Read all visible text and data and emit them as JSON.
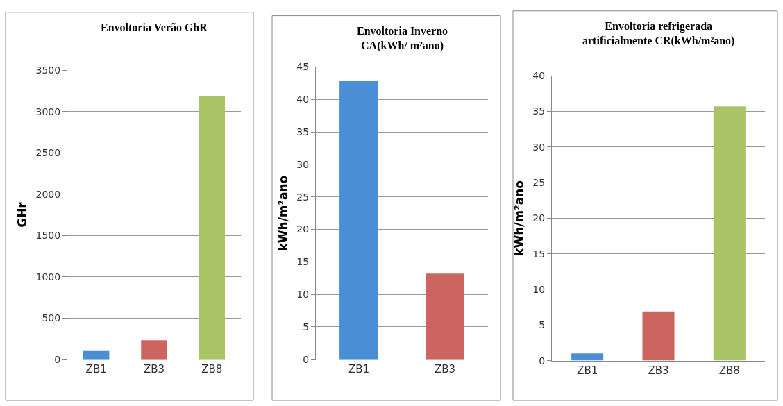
{
  "chart_data": [
    {
      "type": "bar",
      "title": "Envoltoria Verão GhR",
      "ylabel": "GHr",
      "categories": [
        "ZB1",
        "ZB3",
        "ZB8"
      ],
      "values": [
        100,
        230,
        3190
      ],
      "colors": [
        "#4a8fd6",
        "#cc6560",
        "#a8c467"
      ],
      "ylim": [
        0,
        3500
      ],
      "yticks": [
        0,
        500,
        1000,
        1500,
        2000,
        2500,
        3000,
        3500
      ],
      "grid": "y"
    },
    {
      "type": "bar",
      "title": "Envoltoria Inverno\nCA(kWh/ m²ano)",
      "ylabel": "kWh/m²ano",
      "categories": [
        "ZB1",
        "ZB3"
      ],
      "values": [
        42.9,
        13.2
      ],
      "colors": [
        "#4a8fd6",
        "#cc6560"
      ],
      "ylim": [
        0,
        45
      ],
      "yticks": [
        0,
        5,
        10,
        15,
        20,
        25,
        30,
        35,
        40,
        45
      ],
      "grid": "y"
    },
    {
      "type": "bar",
      "title": "Envoltoria refrigerada\nartificialmente CR(kWh/m²ano)",
      "ylabel": "kWh/m²ano",
      "categories": [
        "ZB1",
        "ZB3",
        "ZB8"
      ],
      "values": [
        1,
        6.9,
        35.7
      ],
      "colors": [
        "#4a8fd6",
        "#cc6560",
        "#a8c467"
      ],
      "ylim": [
        0,
        40
      ],
      "yticks": [
        0,
        5,
        10,
        15,
        20,
        25,
        30,
        35,
        40
      ],
      "grid": "y"
    }
  ]
}
